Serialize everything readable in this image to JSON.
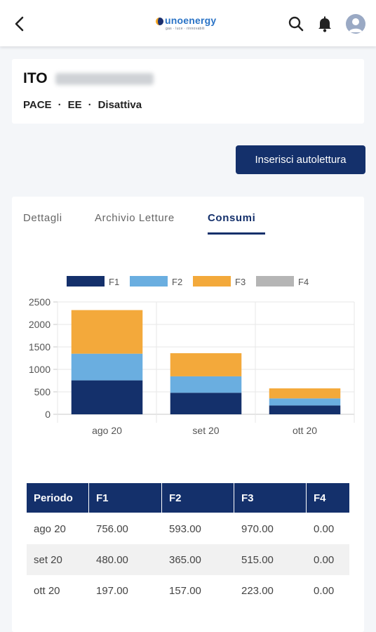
{
  "header": {
    "logo_text": "unoenergy",
    "logo_tagline": "gas · luce · rinnovabili"
  },
  "contract": {
    "code_prefix": "ITO",
    "meta": [
      "PACE",
      "EE",
      "Disattiva"
    ],
    "separator": "·"
  },
  "actions": {
    "insert_reading": "Inserisci autolettura"
  },
  "tabs": [
    {
      "label": "Dettagli",
      "active": false
    },
    {
      "label": "Archivio Letture",
      "active": false
    },
    {
      "label": "Consumi",
      "active": true
    }
  ],
  "colors": {
    "primary": "#14306b",
    "F1": "#14306b",
    "F2": "#6aaee0",
    "F3": "#f3a93b",
    "F4": "#b5b5b5"
  },
  "chart_data": {
    "type": "bar",
    "stacked": true,
    "categories": [
      "ago 20",
      "set 20",
      "ott 20"
    ],
    "series": [
      {
        "name": "F1",
        "values": [
          756,
          480,
          197
        ]
      },
      {
        "name": "F2",
        "values": [
          593,
          365,
          157
        ]
      },
      {
        "name": "F3",
        "values": [
          970,
          515,
          223
        ]
      },
      {
        "name": "F4",
        "values": [
          0,
          0,
          0
        ]
      }
    ],
    "ylim": [
      0,
      2500
    ],
    "yticks": [
      "2500",
      "2000",
      "1500",
      "1000",
      "500",
      "0"
    ],
    "legend": "top",
    "grid": true
  },
  "table": {
    "headers": [
      "Periodo",
      "F1",
      "F2",
      "F3",
      "F4"
    ],
    "rows": [
      [
        "ago 20",
        "756.00",
        "593.00",
        "970.00",
        "0.00"
      ],
      [
        "set 20",
        "480.00",
        "365.00",
        "515.00",
        "0.00"
      ],
      [
        "ott 20",
        "197.00",
        "157.00",
        "223.00",
        "0.00"
      ]
    ]
  }
}
